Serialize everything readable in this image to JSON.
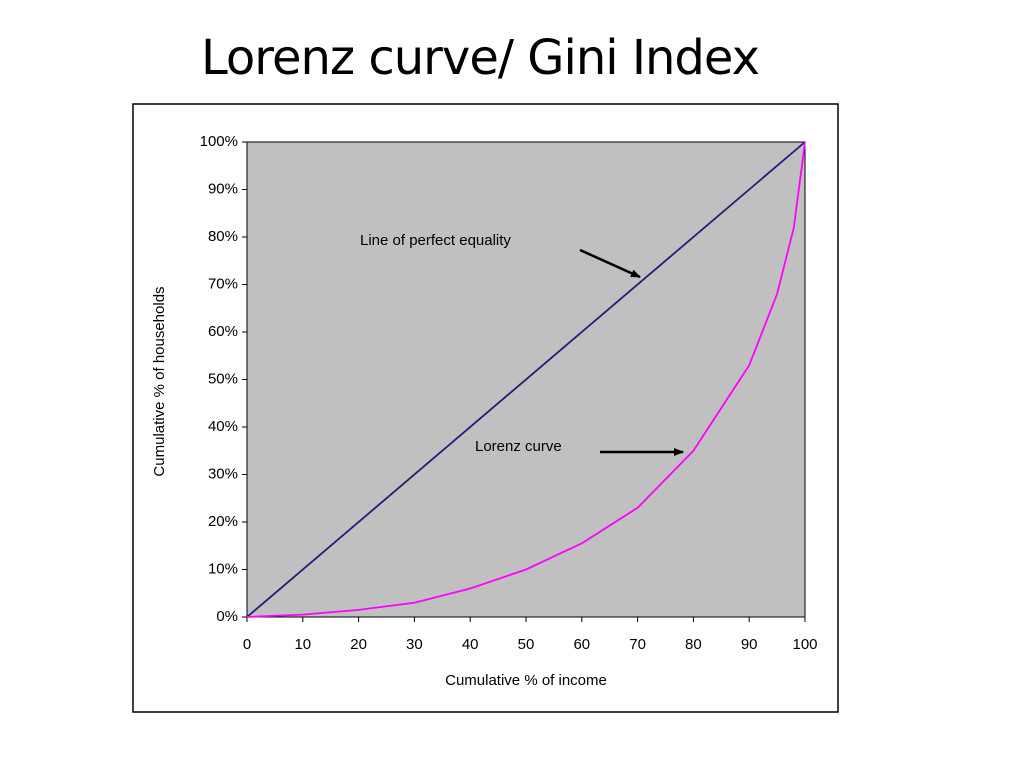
{
  "title": "Lorenz curve/ Gini Index",
  "chart_data": {
    "type": "line",
    "xlabel": "Cumulative % of income",
    "ylabel": "Cumulative % of households",
    "annotations": [
      "Line of perfect equality",
      "Lorenz curve"
    ],
    "series": [
      {
        "color": "#1f1f7a",
        "x": [
          0,
          100
        ],
        "values": [
          0,
          100
        ]
      },
      {
        "color": "#ff00ff",
        "x": [
          0,
          10,
          20,
          30,
          40,
          50,
          60,
          70,
          80,
          90,
          95,
          98,
          100
        ],
        "values": [
          0,
          0.5,
          1.5,
          3,
          6,
          10,
          15.5,
          23,
          35,
          53,
          68,
          82,
          100
        ]
      }
    ],
    "xlim": [
      0,
      100
    ],
    "xticks": [
      0,
      10,
      20,
      30,
      40,
      50,
      60,
      70,
      80,
      90,
      100
    ],
    "ylim": [
      0,
      100
    ],
    "yticks": [
      {
        "value": 0,
        "label": "0%"
      },
      {
        "value": 10,
        "label": "10%"
      },
      {
        "value": 20,
        "label": "20%"
      },
      {
        "value": 30,
        "label": "30%"
      },
      {
        "value": 40,
        "label": "40%"
      },
      {
        "value": 50,
        "label": "50%"
      },
      {
        "value": 60,
        "label": "60%"
      },
      {
        "value": 70,
        "label": "70%"
      },
      {
        "value": 80,
        "label": "80%"
      },
      {
        "value": 90,
        "label": "90%"
      },
      {
        "value": 100,
        "label": "100%"
      }
    ],
    "plot_background": "#c0c0c0"
  }
}
